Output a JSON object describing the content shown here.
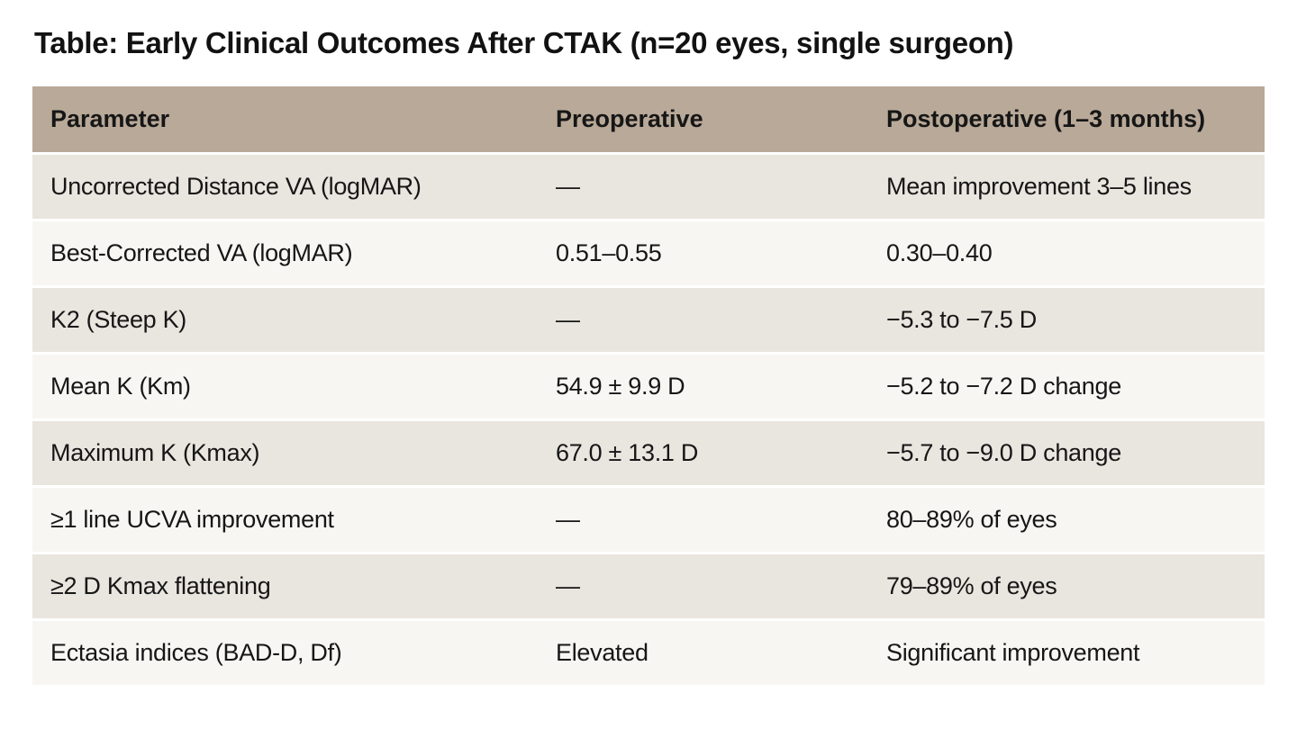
{
  "title": "Table: Early Clinical Outcomes After CTAK (n=20 eyes, single surgeon)",
  "chart_data": {
    "type": "table",
    "title": "Table: Early Clinical Outcomes After CTAK (n=20 eyes, single surgeon)",
    "columns": [
      "Parameter",
      "Preoperative",
      "Postoperative (1–3 months)"
    ],
    "rows": [
      [
        "Uncorrected Distance VA (logMAR)",
        "—",
        "Mean improvement 3–5 lines"
      ],
      [
        "Best-Corrected VA (logMAR)",
        "0.51–0.55",
        "0.30–0.40"
      ],
      [
        "K2 (Steep K)",
        "—",
        "−5.3 to −7.5 D"
      ],
      [
        "Mean K (Km)",
        "54.9 ± 9.9 D",
        "−5.2 to −7.2 D change"
      ],
      [
        "Maximum K (Kmax)",
        "67.0 ± 13.1 D",
        "−5.7 to −9.0 D change"
      ],
      [
        "≥1 line UCVA improvement",
        "—",
        "80–89% of eyes"
      ],
      [
        "≥2 D Kmax flattening",
        "—",
        "79–89% of eyes"
      ],
      [
        "Ectasia indices (BAD-D, Df)",
        "Elevated",
        "Significant improvement"
      ]
    ],
    "layout": {
      "legend": false,
      "grid": false,
      "zebra_striping": true,
      "header_position": "top",
      "row_separator": "3px white gap"
    }
  },
  "colors": {
    "page_bg": "#ffffff",
    "title_color": "#121212",
    "header_bg": "#b9a998",
    "row_odd_bg": "#e9e5df",
    "row_even_bg": "#f8f6f3",
    "text_color": "#161616"
  }
}
